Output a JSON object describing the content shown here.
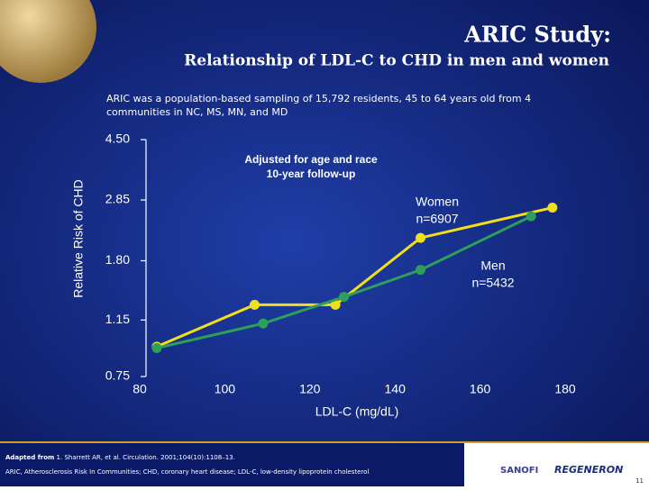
{
  "header": {
    "title": "ARIC Study:",
    "subtitle": "Relationship of LDL-C to CHD in men and women",
    "note_lines": [
      "ARIC was a population-based sampling of 15,792 residents, 45 to 64 years old from 4",
      "communities in NC, MS, MN, and MD"
    ]
  },
  "chart_data": {
    "type": "line",
    "x_label": "LDL-C (mg/dL)",
    "y_label": "Relative Risk of CHD",
    "annotations": [
      "Adjusted for age and race",
      "10-year follow-up"
    ],
    "log_y": true,
    "xlim": [
      80,
      180
    ],
    "xticks": [
      80,
      100,
      120,
      140,
      160,
      180
    ],
    "ylim": [
      0.75,
      4.5
    ],
    "yticks": [
      {
        "value": 0.75,
        "label": "0.75"
      },
      {
        "value": 1.15,
        "label": "1.15"
      },
      {
        "value": 1.8,
        "label": "1.80"
      },
      {
        "value": 2.85,
        "label": "2.85"
      },
      {
        "value": 4.5,
        "label": "4.50"
      }
    ],
    "series": [
      {
        "name": "Women",
        "n": "n=6907",
        "color": "#f2df1b",
        "x": [
          84,
          107,
          126,
          146,
          177
        ],
        "values": [
          0.94,
          1.29,
          1.29,
          2.14,
          2.69
        ]
      },
      {
        "name": "Men",
        "n": "n=5432",
        "color": "#2e9e5b",
        "x": [
          84,
          109,
          128,
          146,
          172
        ],
        "values": [
          0.93,
          1.12,
          1.37,
          1.68,
          2.52
        ]
      }
    ]
  },
  "footer": {
    "source_prefix": "Adapted from",
    "source": "1. Sharrett AR, et al. Circulation. 2001;104(10):1108–13.",
    "abbreviations": "ARIC, Atherosclerosis Risk In Communities; CHD, coronary heart disease; LDL-C, low-density lipoprotein cholesterol",
    "logo_1": "SANOFI",
    "logo_2": "REGENERON",
    "page": "11"
  }
}
